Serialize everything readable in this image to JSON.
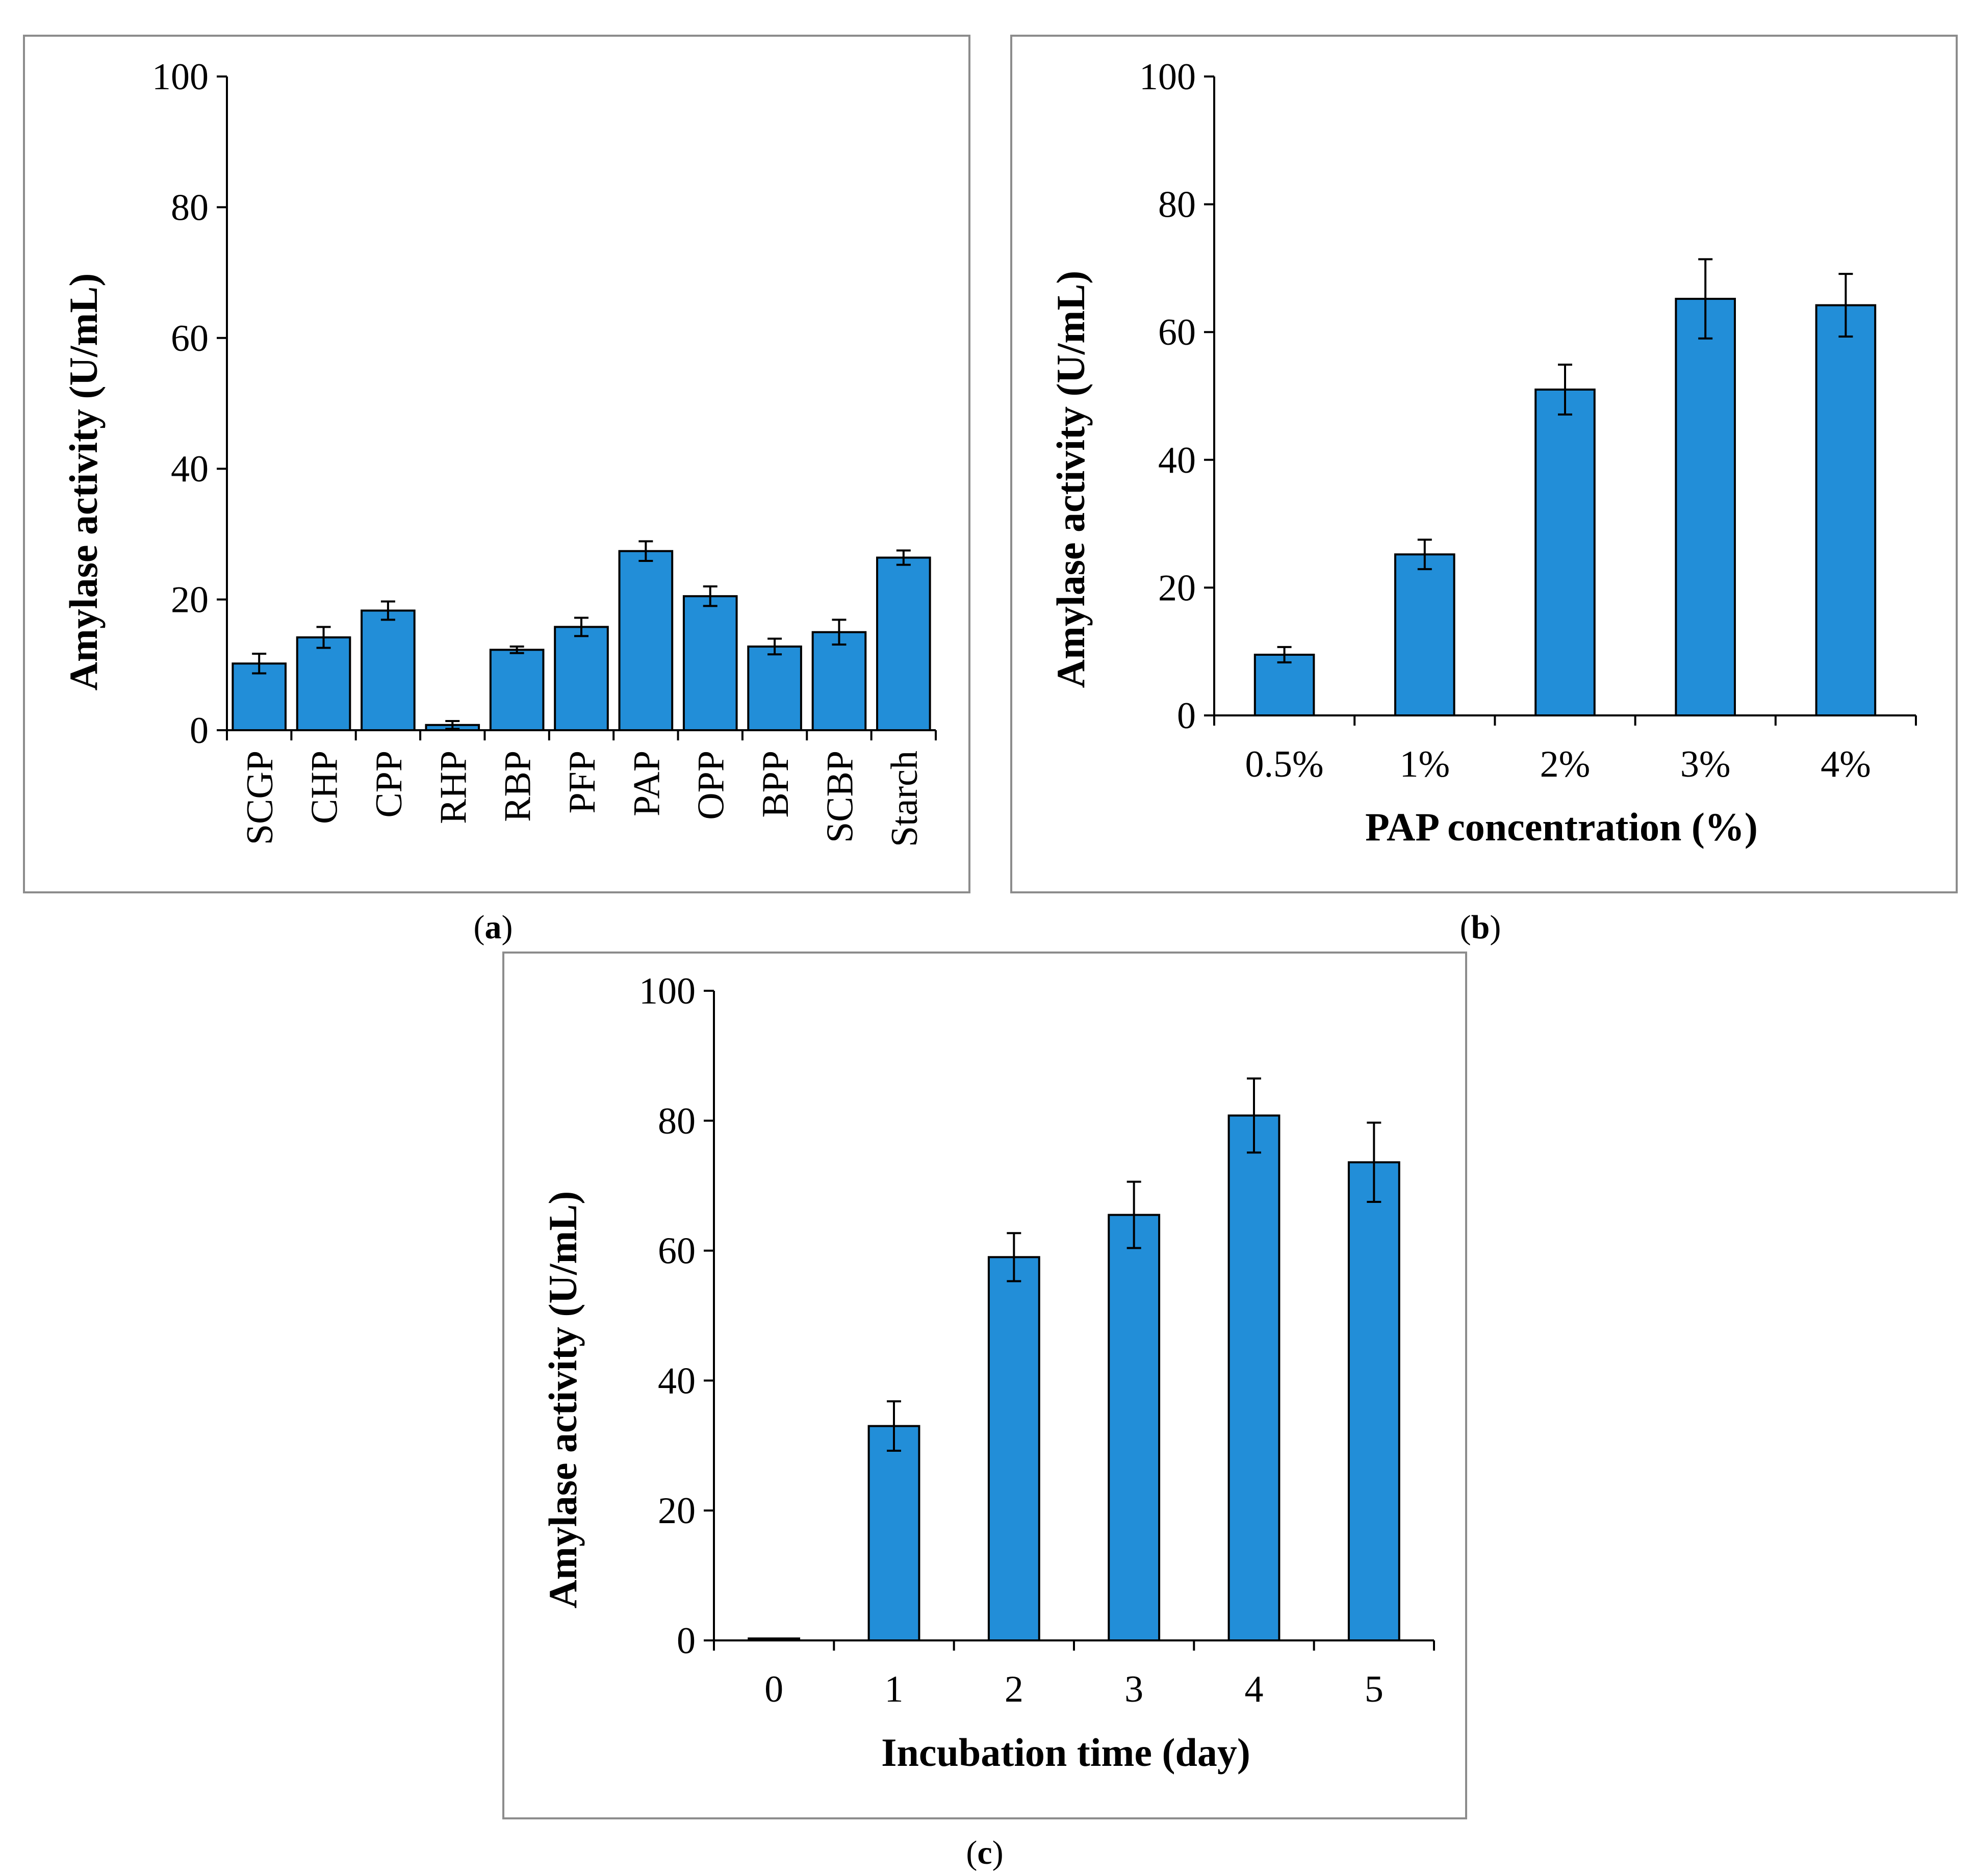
{
  "colors": {
    "bar": "#228ed8",
    "bar_edge": "#000000",
    "frame": "#8c8c8c",
    "axis": "#000000"
  },
  "chart_data": [
    {
      "type": "bar",
      "panel": "a",
      "title": "",
      "xlabel": "",
      "ylabel": "Amylase activity (U/mL)",
      "ylim": [
        0,
        100
      ],
      "yticks": [
        "0",
        "20",
        "40",
        "60",
        "80",
        "100"
      ],
      "categories": [
        "SCGP",
        "CHP",
        "CPP",
        "RHP",
        "RBP",
        "PFP",
        "PAP",
        "OPP",
        "BPP",
        "SCBP",
        "Starch"
      ],
      "values": [
        10.2,
        14.2,
        18.3,
        0.8,
        12.3,
        15.8,
        27.4,
        20.5,
        12.8,
        15.0,
        26.4
      ],
      "errors": [
        1.5,
        1.6,
        1.4,
        0.6,
        0.5,
        1.4,
        1.5,
        1.5,
        1.2,
        1.9,
        1.1
      ],
      "grid": false,
      "legend": "none"
    },
    {
      "type": "bar",
      "panel": "b",
      "title": "",
      "xlabel": "PAP concentration (%)",
      "ylabel": "Amylase activity (U/mL)",
      "ylim": [
        0,
        100
      ],
      "yticks": [
        "0",
        "20",
        "40",
        "60",
        "80",
        "100"
      ],
      "categories": [
        "0.5%",
        "1%",
        "2%",
        "3%",
        "4%"
      ],
      "values": [
        9.5,
        25.2,
        51.0,
        65.2,
        64.2
      ],
      "errors": [
        1.2,
        2.3,
        3.9,
        6.2,
        4.9
      ],
      "grid": false,
      "legend": "none"
    },
    {
      "type": "bar",
      "panel": "c",
      "title": "",
      "xlabel": "Incubation time (day)",
      "ylabel": "Amylase activity (U/mL)",
      "ylim": [
        0,
        100
      ],
      "yticks": [
        "0",
        "20",
        "40",
        "60",
        "80",
        "100"
      ],
      "categories": [
        "0",
        "1",
        "2",
        "3",
        "4",
        "5"
      ],
      "values": [
        0.3,
        33.0,
        59.0,
        65.5,
        80.8,
        73.6
      ],
      "errors": [
        0,
        3.8,
        3.7,
        5.1,
        5.7,
        6.1
      ],
      "grid": false,
      "legend": "none"
    }
  ],
  "panel_labels": [
    "a",
    "b",
    "c"
  ]
}
